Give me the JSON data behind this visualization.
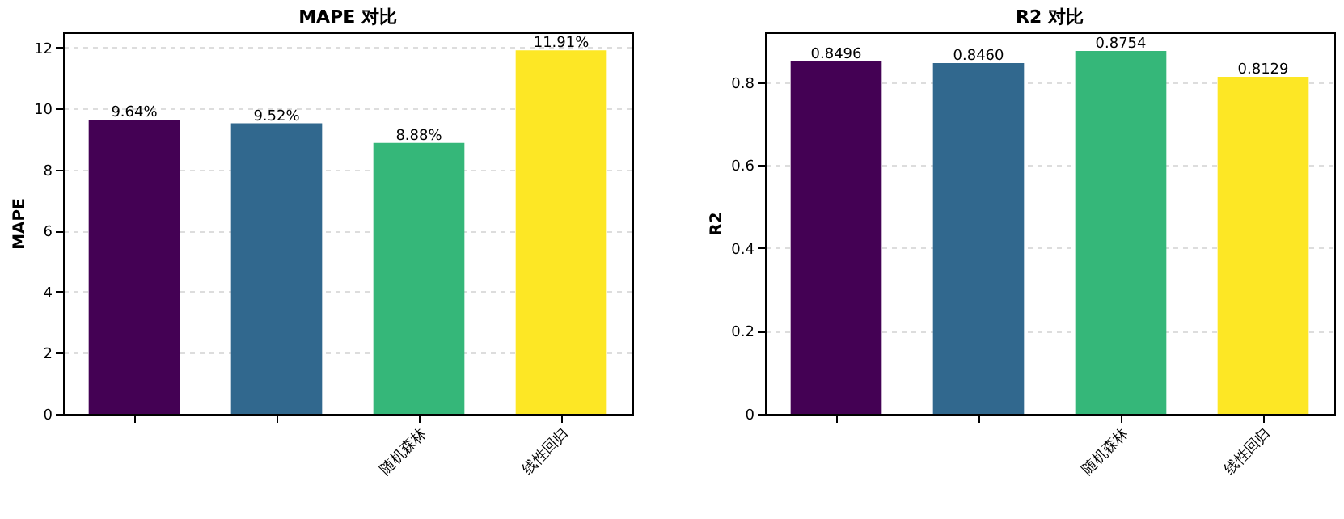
{
  "chart_data": [
    {
      "type": "bar",
      "title": "MAPE 对比",
      "ylabel": "MAPE",
      "categories": [
        null,
        null,
        "随机森林",
        "线性回归"
      ],
      "values": [
        9.64,
        9.52,
        8.88,
        11.91
      ],
      "colors": [
        "#440154",
        "#31688e",
        "#35b779",
        "#fde725"
      ],
      "value_labels": [
        "9.64%",
        "9.52%",
        "8.88%",
        "11.91%"
      ],
      "ylim": [
        0,
        12.5
      ],
      "yticks": [
        0,
        2,
        4,
        6,
        8,
        10,
        12
      ],
      "grid": "y"
    },
    {
      "type": "bar",
      "title": "R2 对比",
      "ylabel": "R2",
      "categories": [
        null,
        null,
        "随机森林",
        "线性回归"
      ],
      "values": [
        0.8496,
        0.846,
        0.8754,
        0.8129
      ],
      "colors": [
        "#440154",
        "#31688e",
        "#35b779",
        "#fde725"
      ],
      "value_labels": [
        "0.8496",
        "0.8460",
        "0.8754",
        "0.8129"
      ],
      "ylim": [
        0,
        0.92
      ],
      "yticks": [
        0,
        0.2,
        0.4,
        0.6,
        0.8
      ],
      "grid": "y"
    }
  ]
}
